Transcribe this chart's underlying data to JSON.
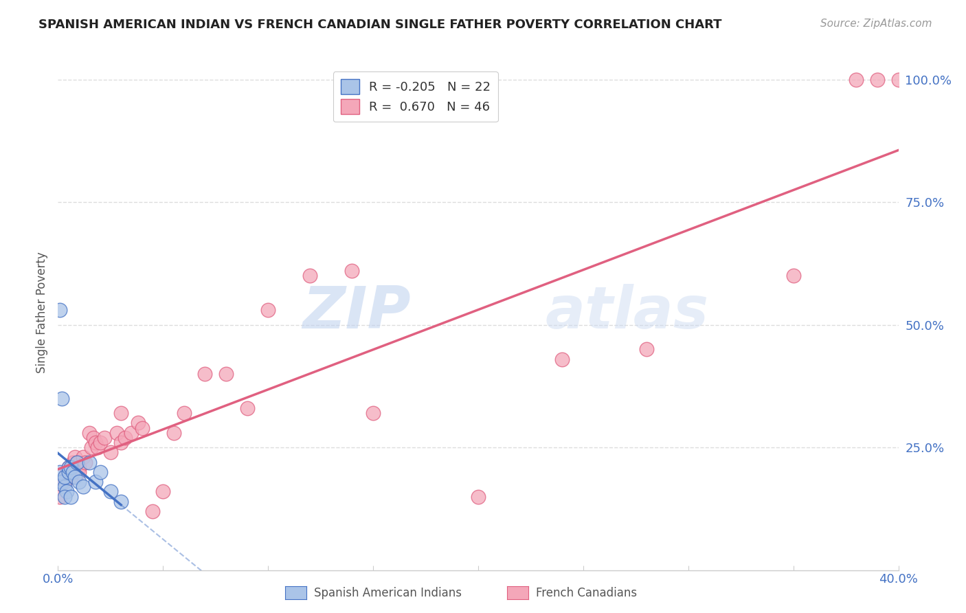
{
  "title": "SPANISH AMERICAN INDIAN VS FRENCH CANADIAN SINGLE FATHER POVERTY CORRELATION CHART",
  "source": "Source: ZipAtlas.com",
  "ylabel": "Single Father Poverty",
  "x_min": 0.0,
  "x_max": 0.4,
  "y_min": 0.0,
  "y_max": 1.05,
  "legend_blue_r": "-0.205",
  "legend_blue_n": "22",
  "legend_pink_r": "0.670",
  "legend_pink_n": "46",
  "legend_label_blue": "Spanish American Indians",
  "legend_label_pink": "French Canadians",
  "blue_scatter_x": [
    0.001,
    0.002,
    0.003,
    0.003,
    0.004,
    0.005,
    0.005,
    0.006,
    0.007,
    0.008,
    0.009,
    0.01,
    0.012,
    0.015,
    0.018,
    0.02,
    0.025,
    0.03,
    0.001,
    0.002,
    0.003,
    0.006
  ],
  "blue_scatter_y": [
    0.2,
    0.18,
    0.17,
    0.19,
    0.16,
    0.2,
    0.21,
    0.21,
    0.2,
    0.19,
    0.22,
    0.18,
    0.17,
    0.22,
    0.18,
    0.2,
    0.16,
    0.14,
    0.53,
    0.35,
    0.15,
    0.15
  ],
  "pink_scatter_x": [
    0.001,
    0.003,
    0.004,
    0.005,
    0.005,
    0.006,
    0.007,
    0.008,
    0.009,
    0.01,
    0.01,
    0.012,
    0.013,
    0.015,
    0.016,
    0.017,
    0.018,
    0.019,
    0.02,
    0.022,
    0.025,
    0.028,
    0.03,
    0.03,
    0.032,
    0.035,
    0.038,
    0.04,
    0.045,
    0.05,
    0.055,
    0.06,
    0.07,
    0.08,
    0.09,
    0.1,
    0.12,
    0.14,
    0.15,
    0.2,
    0.24,
    0.28,
    0.35,
    0.38,
    0.39,
    0.4
  ],
  "pink_scatter_y": [
    0.15,
    0.18,
    0.2,
    0.21,
    0.2,
    0.19,
    0.22,
    0.23,
    0.22,
    0.21,
    0.2,
    0.23,
    0.22,
    0.28,
    0.25,
    0.27,
    0.26,
    0.25,
    0.26,
    0.27,
    0.24,
    0.28,
    0.26,
    0.32,
    0.27,
    0.28,
    0.3,
    0.29,
    0.12,
    0.16,
    0.28,
    0.32,
    0.4,
    0.4,
    0.33,
    0.53,
    0.6,
    0.61,
    0.32,
    0.15,
    0.43,
    0.45,
    0.6,
    1.0,
    1.0,
    1.0
  ],
  "blue_color": "#aac4e8",
  "blue_line_color": "#4472c4",
  "pink_color": "#f4a7b9",
  "pink_line_color": "#e06080",
  "watermark_zip": "ZIP",
  "watermark_atlas": "atlas",
  "background_color": "#ffffff",
  "grid_color": "#dddddd",
  "tick_color": "#4472c4",
  "axis_label_color": "#555555"
}
